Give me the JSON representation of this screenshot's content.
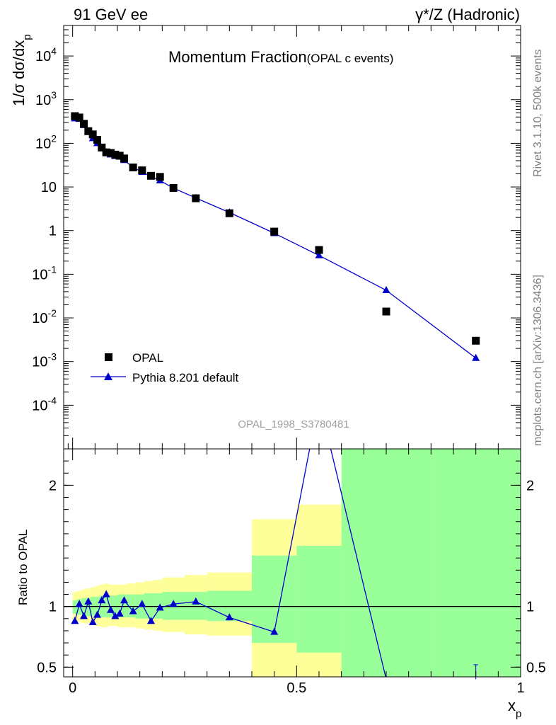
{
  "header": {
    "left": "91 GeV ee",
    "right_sup": "γ*/Z (Hadronic)"
  },
  "side_labels": {
    "rivet": "Rivet 3.1.10,  500k events",
    "mcplots": "mcplots.cern.ch [arXiv:1306.3436]"
  },
  "chart_data": [
    {
      "type": "scatter",
      "title": "Momentum Fraction",
      "subtitle": "(OPAL c events)",
      "ylabel": "1/σ dσ/dx_p",
      "xlabel": "",
      "watermark": "OPAL_1998_S3780481",
      "yscale": "log",
      "xlim": [
        -0.02,
        1.0
      ],
      "ylim": [
        1e-05,
        50000
      ],
      "yticks_labels": [
        "10^-4",
        "10^-3",
        "10^-2",
        "10^-1",
        "1",
        "10",
        "10^2",
        "10^3",
        "10^4"
      ],
      "legend": {
        "placement": "bottom-left",
        "entries": [
          "OPAL",
          "Pythia 8.201 default"
        ]
      },
      "series": [
        {
          "name": "OPAL",
          "marker": "square",
          "color": "#000000",
          "x": [
            0.005,
            0.015,
            0.025,
            0.035,
            0.045,
            0.055,
            0.065,
            0.075,
            0.085,
            0.095,
            0.105,
            0.115,
            0.135,
            0.155,
            0.175,
            0.195,
            0.225,
            0.275,
            0.35,
            0.45,
            0.55,
            0.7,
            0.9
          ],
          "y": [
            420,
            390,
            280,
            190,
            160,
            120,
            80,
            62,
            60,
            55,
            52,
            45,
            28,
            24,
            18,
            17,
            9.5,
            5.5,
            2.5,
            0.95,
            0.36,
            0.014,
            0.003
          ]
        },
        {
          "name": "Pythia 8.201 default",
          "marker": "triangle",
          "color": "#0000cc",
          "x": [
            0.005,
            0.015,
            0.025,
            0.035,
            0.045,
            0.055,
            0.065,
            0.075,
            0.085,
            0.095,
            0.105,
            0.115,
            0.135,
            0.155,
            0.175,
            0.195,
            0.225,
            0.275,
            0.35,
            0.45,
            0.55,
            0.7,
            0.9
          ],
          "y": [
            370,
            360,
            260,
            180,
            130,
            100,
            78,
            62,
            55,
            51,
            49,
            41,
            28,
            22,
            17.5,
            14,
            9.4,
            5.6,
            2.6,
            0.87,
            0.27,
            0.043,
            0.0012
          ]
        }
      ]
    },
    {
      "type": "line",
      "ylabel": "Ratio to OPAL",
      "xlabel": "x_p",
      "xlim": [
        -0.02,
        1.0
      ],
      "ylim": [
        0.42,
        2.3
      ],
      "xticks": [
        "0",
        "0.5",
        "1"
      ],
      "yticks": [
        "0.5",
        "1",
        "2"
      ],
      "reference_line": 1,
      "bands": [
        {
          "x0": 0.0,
          "x1": 0.01,
          "g": [
            0.94,
            1.05
          ],
          "y": [
            0.88,
            1.12
          ]
        },
        {
          "x0": 0.01,
          "x1": 0.02,
          "g": [
            0.93,
            1.06
          ],
          "y": [
            0.87,
            1.13
          ]
        },
        {
          "x0": 0.02,
          "x1": 0.03,
          "g": [
            0.93,
            1.07
          ],
          "y": [
            0.86,
            1.14
          ]
        },
        {
          "x0": 0.03,
          "x1": 0.04,
          "g": [
            0.92,
            1.07
          ],
          "y": [
            0.86,
            1.15
          ]
        },
        {
          "x0": 0.04,
          "x1": 0.05,
          "g": [
            0.92,
            1.08
          ],
          "y": [
            0.85,
            1.16
          ]
        },
        {
          "x0": 0.05,
          "x1": 0.06,
          "g": [
            0.91,
            1.08
          ],
          "y": [
            0.84,
            1.17
          ]
        },
        {
          "x0": 0.06,
          "x1": 0.07,
          "g": [
            0.91,
            1.09
          ],
          "y": [
            0.83,
            1.18
          ]
        },
        {
          "x0": 0.07,
          "x1": 0.08,
          "g": [
            0.91,
            1.09
          ],
          "y": [
            0.83,
            1.19
          ]
        },
        {
          "x0": 0.08,
          "x1": 0.09,
          "g": [
            0.91,
            1.09
          ],
          "y": [
            0.84,
            1.18
          ]
        },
        {
          "x0": 0.09,
          "x1": 0.1,
          "g": [
            0.91,
            1.09
          ],
          "y": [
            0.84,
            1.18
          ]
        },
        {
          "x0": 0.1,
          "x1": 0.12,
          "g": [
            0.91,
            1.1
          ],
          "y": [
            0.83,
            1.18
          ]
        },
        {
          "x0": 0.12,
          "x1": 0.14,
          "g": [
            0.91,
            1.1
          ],
          "y": [
            0.83,
            1.19
          ]
        },
        {
          "x0": 0.14,
          "x1": 0.16,
          "g": [
            0.9,
            1.1
          ],
          "y": [
            0.82,
            1.2
          ]
        },
        {
          "x0": 0.16,
          "x1": 0.18,
          "g": [
            0.9,
            1.11
          ],
          "y": [
            0.81,
            1.21
          ]
        },
        {
          "x0": 0.18,
          "x1": 0.2,
          "g": [
            0.9,
            1.11
          ],
          "y": [
            0.8,
            1.22
          ]
        },
        {
          "x0": 0.2,
          "x1": 0.25,
          "g": [
            0.89,
            1.12
          ],
          "y": [
            0.79,
            1.24
          ]
        },
        {
          "x0": 0.25,
          "x1": 0.3,
          "g": [
            0.89,
            1.12
          ],
          "y": [
            0.77,
            1.26
          ]
        },
        {
          "x0": 0.3,
          "x1": 0.4,
          "g": [
            0.88,
            1.13
          ],
          "y": [
            0.76,
            1.28
          ]
        },
        {
          "x0": 0.4,
          "x1": 0.5,
          "g": [
            0.7,
            1.42
          ],
          "y": [
            0.42,
            1.72
          ]
        },
        {
          "x0": 0.5,
          "x1": 0.6,
          "g": [
            0.62,
            1.5
          ],
          "y": [
            0.42,
            1.84
          ]
        },
        {
          "x0": 0.6,
          "x1": 0.8,
          "g": [
            0.42,
            2.3
          ],
          "y": [
            0.42,
            2.3
          ]
        },
        {
          "x0": 0.8,
          "x1": 1.0,
          "g": [
            0.42,
            2.3
          ],
          "y": [
            0.42,
            2.3
          ]
        }
      ],
      "series": [
        {
          "name": "Pythia 8.201 default",
          "color": "#0000cc",
          "x": [
            0.005,
            0.015,
            0.025,
            0.035,
            0.045,
            0.055,
            0.065,
            0.075,
            0.085,
            0.095,
            0.105,
            0.115,
            0.135,
            0.155,
            0.175,
            0.195,
            0.225,
            0.275,
            0.35,
            0.45,
            0.55,
            0.7,
            0.9
          ],
          "y": [
            0.88,
            1.02,
            0.92,
            1.04,
            0.87,
            0.93,
            1.05,
            1.1,
            0.97,
            0.92,
            0.94,
            1.05,
            0.96,
            1.02,
            0.88,
            0.99,
            1.02,
            1.04,
            0.91,
            0.79,
            2.7,
            0.4,
            0.4
          ]
        }
      ]
    }
  ]
}
